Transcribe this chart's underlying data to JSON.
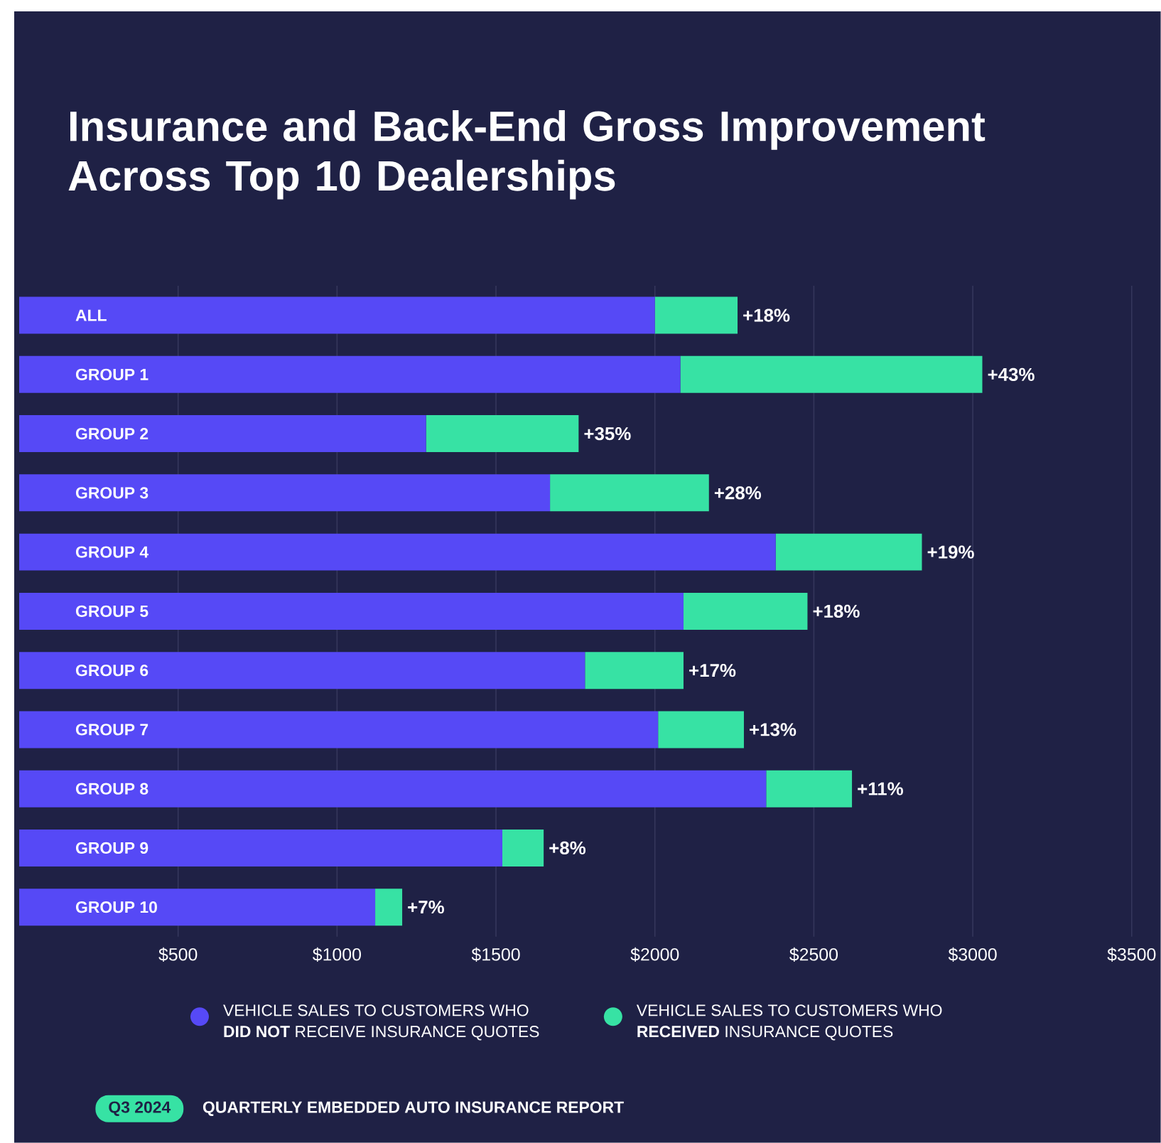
{
  "chart_data": {
    "type": "bar",
    "orientation": "horizontal",
    "stacked": true,
    "title": "Insurance and Back-End Gross Improvement Across Top 10 Dealerships",
    "categories": [
      "ALL",
      "GROUP 1",
      "GROUP 2",
      "GROUP 3",
      "GROUP 4",
      "GROUP 5",
      "GROUP 6",
      "GROUP 7",
      "GROUP 8",
      "GROUP 9",
      "GROUP 10"
    ],
    "series": [
      {
        "name": "VEHICLE SALES TO CUSTOMERS WHO **DID NOT** RECEIVE INSURANCE QUOTES",
        "color": "#5649f6",
        "values": [
          2000,
          2080,
          1280,
          1670,
          2380,
          2090,
          1780,
          2010,
          2350,
          1520,
          1120
        ]
      },
      {
        "name": "VEHICLE SALES TO CUSTOMERS WHO **RECEIVED** INSURANCE QUOTES",
        "color": "#37e2a4",
        "values": [
          260,
          950,
          480,
          500,
          460,
          390,
          310,
          270,
          270,
          130,
          85
        ]
      }
    ],
    "xlim": [
      0,
      3500
    ],
    "xticks": [
      {
        "value": 500,
        "label": "$500"
      },
      {
        "value": 1000,
        "label": "$1000"
      },
      {
        "value": 1500,
        "label": "$1500"
      },
      {
        "value": 2000,
        "label": "$2000"
      },
      {
        "value": 2500,
        "label": "$2500"
      },
      {
        "value": 3000,
        "label": "$3000"
      },
      {
        "value": 3500,
        "label": "$3500"
      }
    ],
    "grid": "x",
    "legend": "bottom",
    "annotations": [
      {
        "text": "+18%",
        "x": 2260,
        "y": "ALL"
      },
      {
        "text": "+43%",
        "x": 3030,
        "y": "GROUP 1"
      },
      {
        "text": "+35%",
        "x": 1760,
        "y": "GROUP 2"
      },
      {
        "text": "+28%",
        "x": 2170,
        "y": "GROUP 3"
      },
      {
        "text": "+19%",
        "x": 2840,
        "y": "GROUP 4"
      },
      {
        "text": "+18%",
        "x": 2480,
        "y": "GROUP 5"
      },
      {
        "text": "+17%",
        "x": 2090,
        "y": "GROUP 6"
      },
      {
        "text": "+13%",
        "x": 2280,
        "y": "GROUP 7"
      },
      {
        "text": "+11%",
        "x": 2620,
        "y": "GROUP 8"
      },
      {
        "text": "+8%",
        "x": 1650,
        "y": "GROUP 9"
      },
      {
        "text": "+7%",
        "x": 1205,
        "y": "GROUP 10"
      },
      "Q3 2024",
      "QUARTERLY EMBEDDED AUTO INSURANCE REPORT"
    ]
  }
}
